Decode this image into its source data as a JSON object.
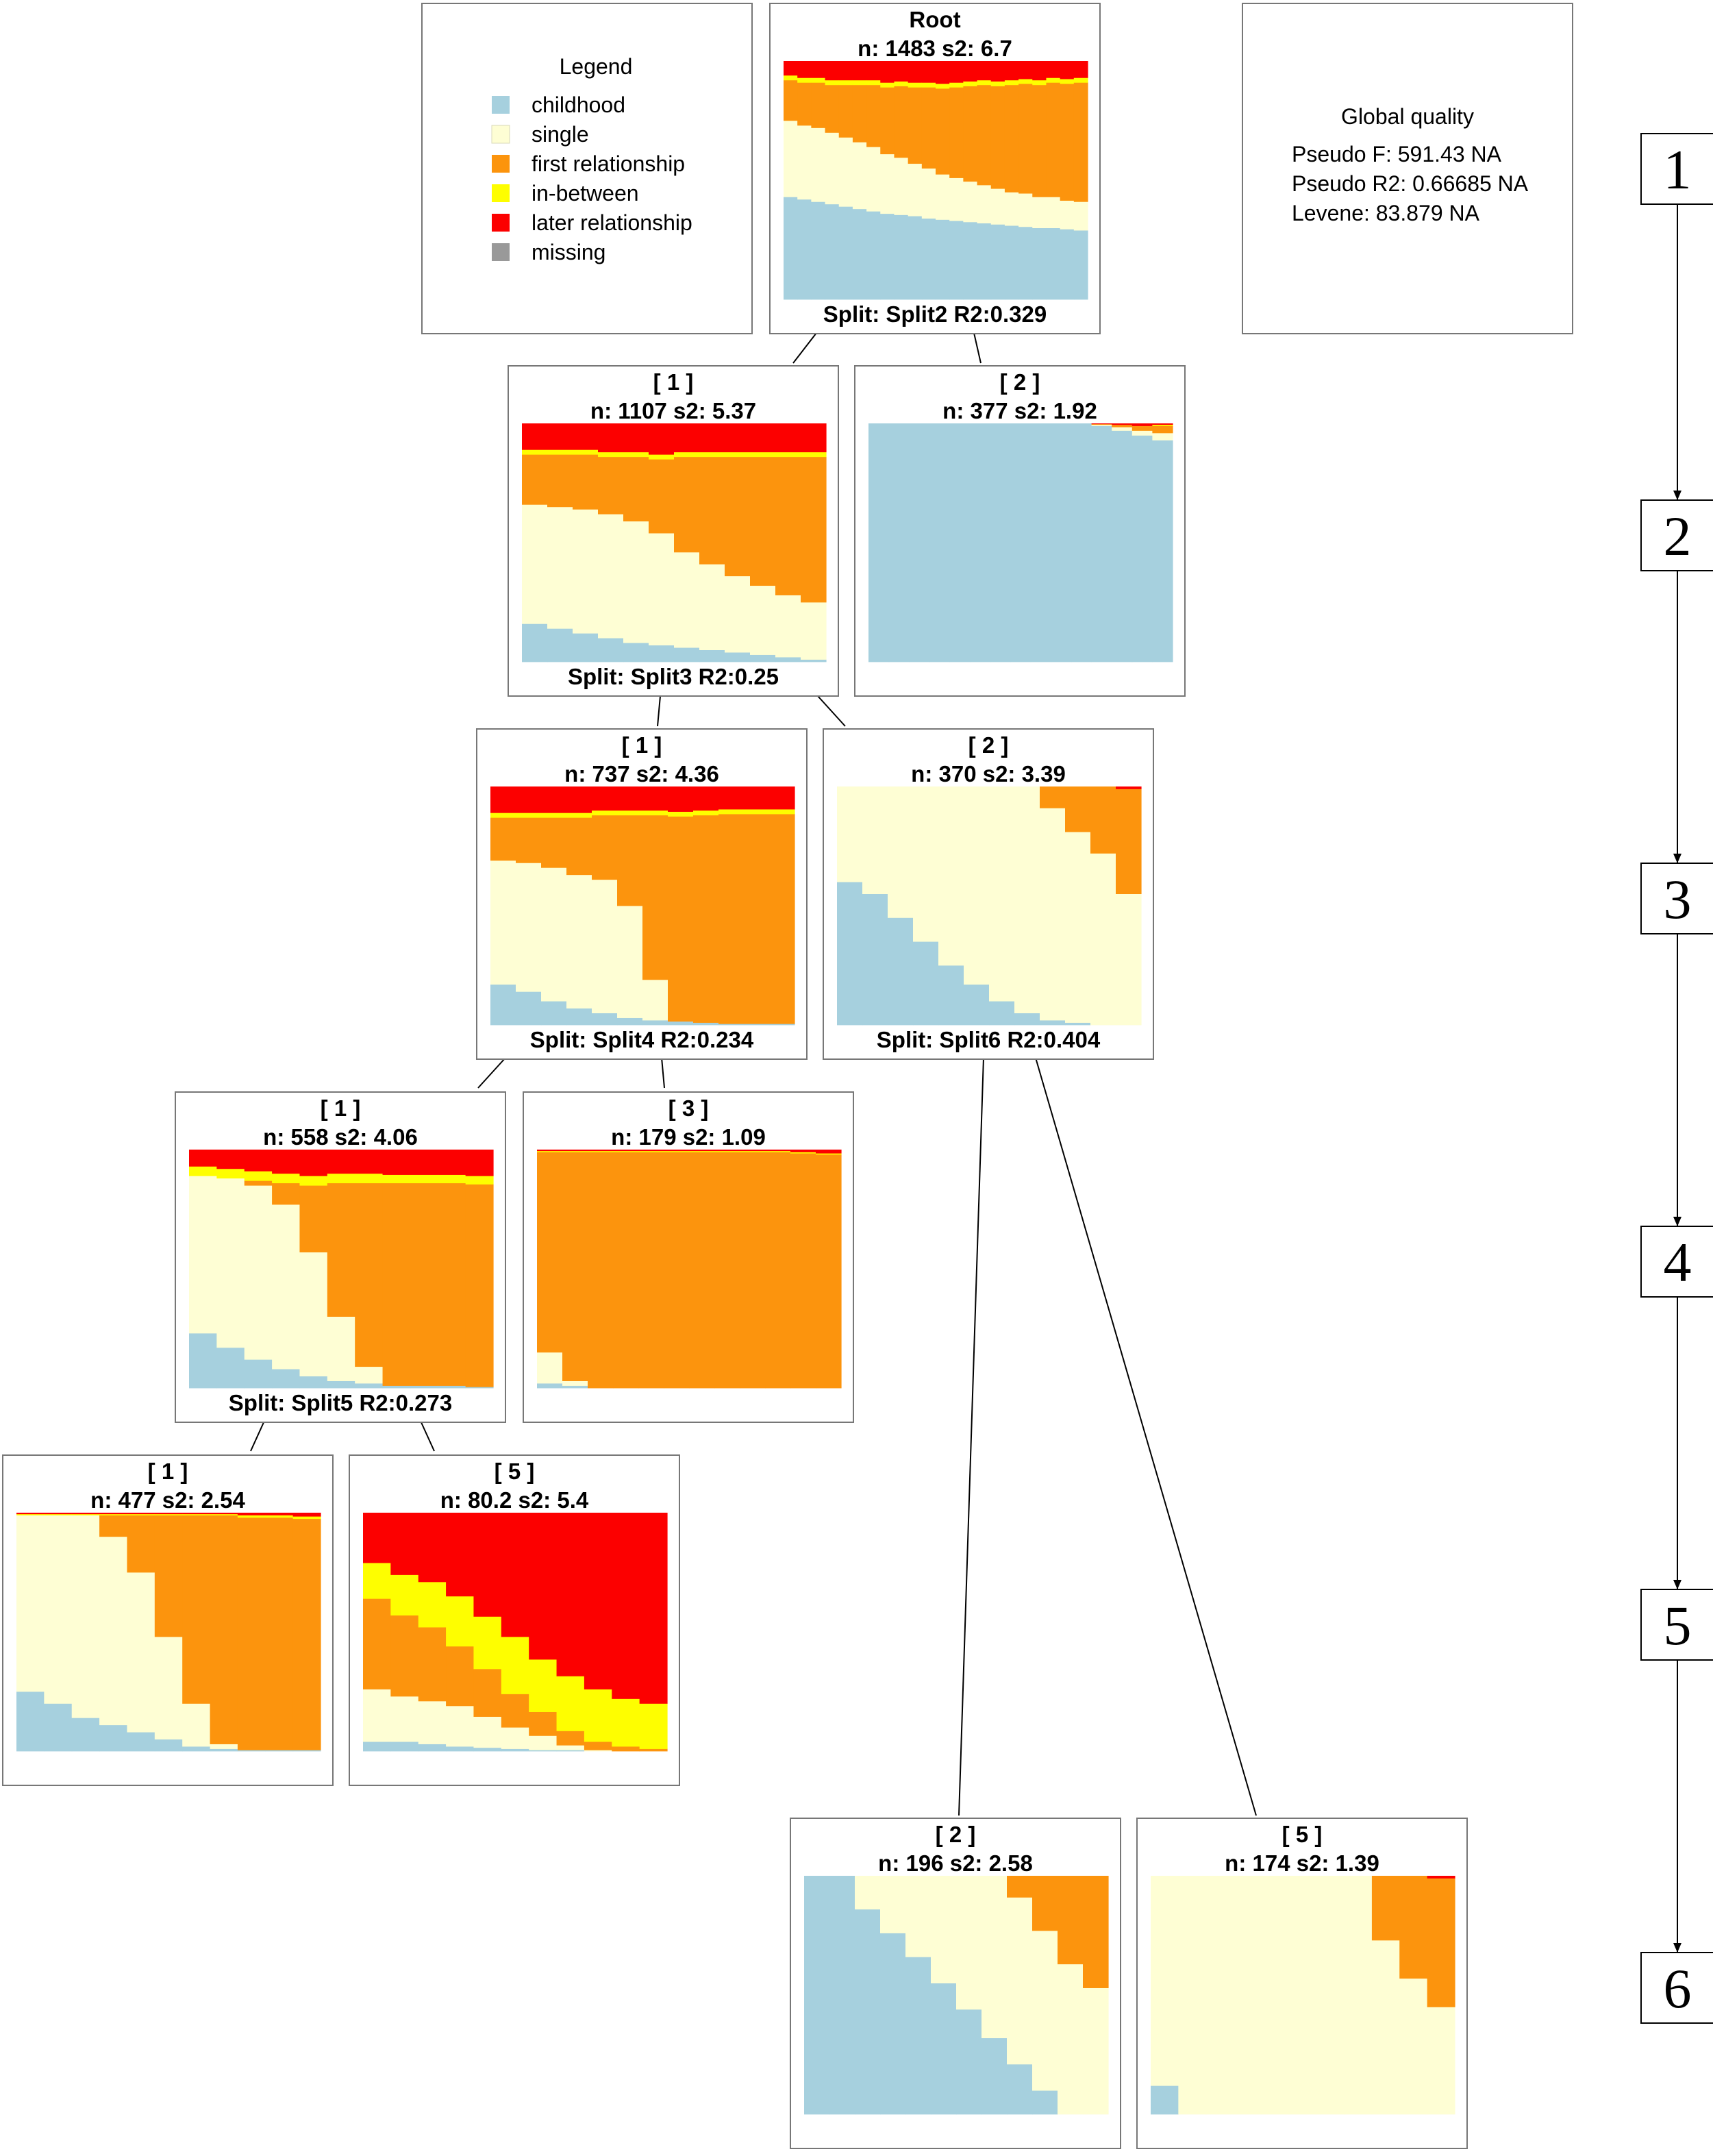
{
  "colors": {
    "childhood": "#a6d0de",
    "single": "#fefed4",
    "first relationship": "#fc940d",
    "in-between": "#fefe00",
    "later relationship": "#fc0000",
    "missing": "#999999"
  },
  "legend": {
    "title": "Legend",
    "items": [
      {
        "label": "childhood",
        "key": "childhood"
      },
      {
        "label": "single",
        "key": "single"
      },
      {
        "label": "first relationship",
        "key": "first relationship"
      },
      {
        "label": "in-between",
        "key": "in-between"
      },
      {
        "label": "later relationship",
        "key": "later relationship"
      },
      {
        "label": "missing",
        "key": "missing"
      }
    ]
  },
  "global_quality": {
    "title": "Global quality",
    "lines": [
      "Pseudo F: 591.43 NA",
      "Pseudo R2: 0.66685 NA",
      "Levene: 83.879 NA"
    ]
  },
  "levels": [
    "1",
    "2",
    "3",
    "4",
    "5",
    "6"
  ],
  "nodes": [
    {
      "id": "root",
      "title": "Root",
      "stats": "n: 1483 s2: 6.7",
      "split": "Split: Split2 R2:0.329",
      "chart": {
        "childhood": [
          0.43,
          0.42,
          0.41,
          0.4,
          0.39,
          0.38,
          0.37,
          0.36,
          0.355,
          0.35,
          0.34,
          0.335,
          0.33,
          0.325,
          0.32,
          0.315,
          0.31,
          0.305,
          0.3,
          0.3,
          0.295,
          0.29
        ],
        "single": [
          0.32,
          0.31,
          0.31,
          0.3,
          0.29,
          0.28,
          0.27,
          0.25,
          0.24,
          0.22,
          0.21,
          0.19,
          0.18,
          0.17,
          0.16,
          0.15,
          0.14,
          0.14,
          0.13,
          0.13,
          0.12,
          0.12
        ],
        "first relationship": [
          0.17,
          0.18,
          0.19,
          0.2,
          0.22,
          0.24,
          0.26,
          0.28,
          0.3,
          0.32,
          0.34,
          0.36,
          0.38,
          0.4,
          0.42,
          0.43,
          0.45,
          0.46,
          0.47,
          0.48,
          0.49,
          0.5
        ],
        "in-between": [
          0.02,
          0.02,
          0.02,
          0.02,
          0.02,
          0.02,
          0.02,
          0.02,
          0.02,
          0.02,
          0.02,
          0.02,
          0.02,
          0.02,
          0.02,
          0.02,
          0.02,
          0.02,
          0.02,
          0.02,
          0.02,
          0.02
        ]
      }
    },
    {
      "id": "n2a",
      "title": "[ 1 ]",
      "stats": "n: 1107 s2: 5.37",
      "split": "Split: Split3 R2:0.25",
      "chart": {
        "childhood": [
          0.16,
          0.14,
          0.12,
          0.1,
          0.08,
          0.07,
          0.06,
          0.05,
          0.04,
          0.03,
          0.02,
          0.01
        ],
        "single": [
          0.5,
          0.51,
          0.52,
          0.52,
          0.51,
          0.47,
          0.4,
          0.36,
          0.32,
          0.29,
          0.26,
          0.24
        ],
        "first relationship": [
          0.21,
          0.22,
          0.23,
          0.24,
          0.27,
          0.31,
          0.4,
          0.45,
          0.5,
          0.54,
          0.58,
          0.61
        ],
        "in-between": [
          0.02,
          0.02,
          0.02,
          0.02,
          0.02,
          0.02,
          0.02,
          0.02,
          0.02,
          0.02,
          0.02,
          0.02
        ]
      }
    },
    {
      "id": "n2b",
      "title": "[ 2 ]",
      "stats": "n: 377 s2: 1.92",
      "split": "",
      "chart": {
        "childhood": [
          1,
          1,
          1,
          1,
          1,
          1,
          1,
          1,
          1,
          1,
          1,
          0.99,
          0.97,
          0.95,
          0.93
        ],
        "single": [
          0,
          0,
          0,
          0,
          0,
          0,
          0,
          0,
          0,
          0,
          0,
          0.005,
          0.015,
          0.02,
          0.03
        ],
        "first relationship": [
          0,
          0,
          0,
          0,
          0,
          0,
          0,
          0,
          0,
          0,
          0,
          0.003,
          0.01,
          0.02,
          0.03
        ],
        "in-between": [
          0,
          0,
          0,
          0,
          0,
          0,
          0,
          0,
          0,
          0,
          0,
          0,
          0,
          0,
          0.005
        ]
      }
    },
    {
      "id": "n3a",
      "title": "[ 1 ]",
      "stats": "n: 737 s2: 4.36",
      "split": "Split: Split4 R2:0.234",
      "chart": {
        "childhood": [
          0.17,
          0.14,
          0.1,
          0.07,
          0.05,
          0.03,
          0.02,
          0.015,
          0.01,
          0.005,
          0.005,
          0.005
        ],
        "single": [
          0.52,
          0.54,
          0.56,
          0.56,
          0.56,
          0.47,
          0.17,
          0,
          0,
          0,
          0,
          0
        ],
        "first relationship": [
          0.18,
          0.19,
          0.21,
          0.24,
          0.27,
          0.38,
          0.69,
          0.86,
          0.87,
          0.88,
          0.88,
          0.88
        ],
        "in-between": [
          0.02,
          0.02,
          0.02,
          0.02,
          0.02,
          0.02,
          0.02,
          0.02,
          0.02,
          0.02,
          0.02,
          0.02
        ]
      }
    },
    {
      "id": "n3b",
      "title": "[ 2 ]",
      "stats": "n: 370 s2: 3.39",
      "split": "Split: Split6 R2:0.404",
      "chart": {
        "childhood": [
          0.6,
          0.55,
          0.45,
          0.35,
          0.25,
          0.17,
          0.1,
          0.05,
          0.02,
          0.01,
          0,
          0
        ],
        "single": [
          0.4,
          0.45,
          0.55,
          0.65,
          0.75,
          0.83,
          0.9,
          0.95,
          0.89,
          0.8,
          0.72,
          0.55
        ],
        "first relationship": [
          0,
          0,
          0,
          0,
          0,
          0,
          0,
          0,
          0.09,
          0.19,
          0.28,
          0.44
        ],
        "in-between": [
          0,
          0,
          0,
          0,
          0,
          0,
          0,
          0,
          0,
          0,
          0,
          0
        ]
      }
    },
    {
      "id": "n4a",
      "title": "[ 1 ]",
      "stats": "n: 558 s2: 4.06",
      "split": "Split: Split5 R2:0.273",
      "chart": {
        "childhood": [
          0.23,
          0.17,
          0.12,
          0.08,
          0.05,
          0.03,
          0.02,
          0.01,
          0.01,
          0.01,
          0.005
        ],
        "single": [
          0.66,
          0.71,
          0.73,
          0.69,
          0.52,
          0.27,
          0.07,
          0,
          0,
          0,
          0
        ],
        "first relationship": [
          0.0,
          0.0,
          0.02,
          0.09,
          0.28,
          0.56,
          0.77,
          0.85,
          0.85,
          0.85,
          0.85
        ],
        "in-between": [
          0.04,
          0.04,
          0.04,
          0.04,
          0.04,
          0.04,
          0.04,
          0.035,
          0.035,
          0.035,
          0.035
        ]
      }
    },
    {
      "id": "n4b",
      "title": "[ 3 ]",
      "stats": "n: 179 s2: 1.09",
      "split": "",
      "chart": {
        "childhood": [
          0.02,
          0.01,
          0,
          0,
          0,
          0,
          0,
          0,
          0,
          0,
          0,
          0
        ],
        "single": [
          0.13,
          0.02,
          0,
          0,
          0,
          0,
          0,
          0,
          0,
          0,
          0,
          0
        ],
        "first relationship": [
          0.84,
          0.96,
          0.99,
          0.99,
          0.99,
          0.99,
          0.99,
          0.99,
          0.99,
          0.99,
          0.985,
          0.98
        ],
        "in-between": [
          0.005,
          0.005,
          0.005,
          0.005,
          0.005,
          0.005,
          0.005,
          0.005,
          0.005,
          0.005,
          0.005,
          0.005
        ]
      }
    },
    {
      "id": "n5a",
      "title": "[ 1 ]",
      "stats": "n: 477 s2: 2.54",
      "split": "",
      "chart": {
        "childhood": [
          0.25,
          0.2,
          0.14,
          0.11,
          0.08,
          0.05,
          0.02,
          0.01,
          0.005,
          0.005,
          0.005
        ],
        "single": [
          0.74,
          0.79,
          0.85,
          0.79,
          0.67,
          0.43,
          0.18,
          0.02,
          0,
          0,
          0
        ],
        "first relationship": [
          0,
          0,
          0,
          0.09,
          0.24,
          0.51,
          0.79,
          0.96,
          0.975,
          0.975,
          0.97
        ],
        "in-between": [
          0.005,
          0.005,
          0.005,
          0.005,
          0.005,
          0.005,
          0.005,
          0.005,
          0.01,
          0.01,
          0.01
        ]
      }
    },
    {
      "id": "n5b",
      "title": "[ 5 ]",
      "stats": "n: 80.2 s2: 5.4",
      "split": "",
      "chart": {
        "childhood": [
          0.04,
          0.04,
          0.03,
          0.02,
          0.015,
          0.01,
          0.005,
          0.005,
          0,
          0,
          0
        ],
        "single": [
          0.22,
          0.19,
          0.18,
          0.17,
          0.13,
          0.09,
          0.06,
          0.02,
          0.005,
          0,
          0
        ],
        "first relationship": [
          0.38,
          0.34,
          0.31,
          0.25,
          0.2,
          0.14,
          0.1,
          0.06,
          0.035,
          0.02,
          0.01
        ],
        "in-between": [
          0.15,
          0.17,
          0.19,
          0.21,
          0.22,
          0.24,
          0.22,
          0.23,
          0.22,
          0.2,
          0.19
        ]
      }
    },
    {
      "id": "n6a",
      "title": "[ 2 ]",
      "stats": "n: 196 s2: 2.58",
      "split": "",
      "chart": {
        "childhood": [
          1,
          1,
          0.86,
          0.76,
          0.66,
          0.55,
          0.44,
          0.32,
          0.21,
          0.1,
          0,
          0
        ],
        "single": [
          0,
          0,
          0.14,
          0.24,
          0.34,
          0.45,
          0.56,
          0.68,
          0.7,
          0.67,
          0.63,
          0.53
        ],
        "first relationship": [
          0,
          0,
          0,
          0,
          0,
          0,
          0,
          0,
          0.09,
          0.23,
          0.37,
          0.47
        ],
        "in-between": [
          0,
          0,
          0,
          0,
          0,
          0,
          0,
          0,
          0,
          0,
          0,
          0
        ]
      }
    },
    {
      "id": "n6b",
      "title": "[ 5 ]",
      "stats": "n: 174 s2: 1.39",
      "split": "",
      "chart": {
        "childhood": [
          0.12,
          0,
          0,
          0,
          0,
          0,
          0,
          0,
          0,
          0,
          0
        ],
        "single": [
          0.88,
          1,
          1,
          1,
          1,
          1,
          1,
          1,
          0.73,
          0.57,
          0.45
        ],
        "first relationship": [
          0,
          0,
          0,
          0,
          0,
          0,
          0,
          0,
          0.27,
          0.43,
          0.54
        ],
        "in-between": [
          0,
          0,
          0,
          0,
          0,
          0,
          0,
          0,
          0,
          0,
          0
        ]
      }
    }
  ]
}
